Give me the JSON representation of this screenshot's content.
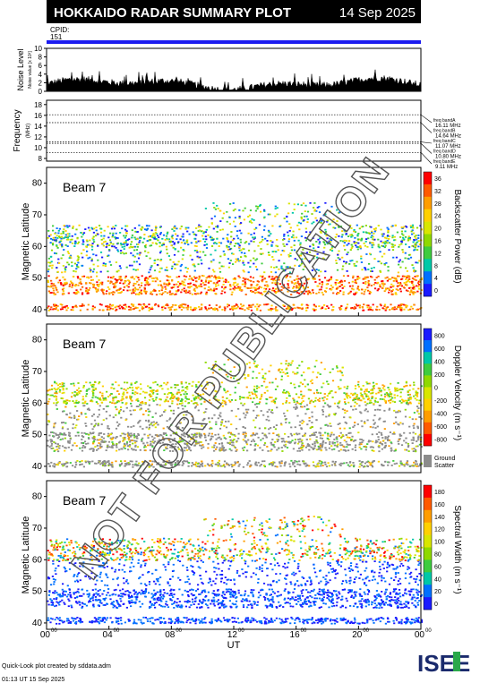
{
  "header": {
    "title": "HOKKAIDO RADAR SUMMARY PLOT",
    "date": "14 Sep 2025",
    "cpid_label": "CPID:",
    "cpid_value": "151"
  },
  "noise_panel": {
    "ylabel_main": "Noise Level",
    "ylabel_sub": "Noise value [x 10³]",
    "yticks": [
      "10",
      "8",
      "6",
      "4",
      "2",
      "0"
    ]
  },
  "freq_panel": {
    "ylabel_main": "Frequency",
    "ylabel_sub": "(MHz)",
    "yticks": [
      "18",
      "16",
      "14",
      "12",
      "10",
      "8"
    ],
    "bands": [
      {
        "name": "freq bandA",
        "value": "16.11 MHz",
        "mhz": 16.11
      },
      {
        "name": "freq bandB",
        "value": "14.64 MHz",
        "mhz": 14.64
      },
      {
        "name": "freq bandC",
        "value": "11.07 MHz",
        "mhz": 11.07
      },
      {
        "name": "freq bandD",
        "value": "10.80 MHz",
        "mhz": 10.8
      },
      {
        "name": "freq bandE",
        "value": "9.11 MHz",
        "mhz": 9.11
      }
    ]
  },
  "panels": [
    {
      "beam_label": "Beam  7",
      "ylabel": "Magnetic Latitude",
      "yticks": [
        "80",
        "70",
        "60",
        "50",
        "40"
      ],
      "colorbar_label": "Backscatter Power (dB)",
      "colorbar_ticks": [
        "36",
        "32",
        "28",
        "24",
        "20",
        "16",
        "12",
        "8",
        "4",
        "0"
      ],
      "colors": [
        "#ff0000",
        "#ff5a00",
        "#ff9d00",
        "#ffd000",
        "#d8e600",
        "#8fd900",
        "#3fcc3f",
        "#00c8a8",
        "#0070ff",
        "#1a1aff"
      ]
    },
    {
      "beam_label": "Beam  7",
      "ylabel": "Magnetic Latitude",
      "yticks": [
        "80",
        "70",
        "60",
        "50",
        "40"
      ],
      "colorbar_label": "Doppler Velocity (m s⁻¹)",
      "colorbar_ticks": [
        "800",
        "600",
        "400",
        "200",
        "0",
        "-200",
        "-400",
        "-600",
        "-800"
      ],
      "ground_label_1": "Ground",
      "ground_label_2": "Scatter",
      "colors": [
        "#1a1aff",
        "#0070ff",
        "#00c8a8",
        "#3fcc3f",
        "#8fd900",
        "#d8e600",
        "#ffd000",
        "#ff9d00",
        "#ff5a00",
        "#ff0000"
      ]
    },
    {
      "beam_label": "Beam  7",
      "ylabel": "Magnetic Latitude",
      "yticks": [
        "80",
        "70",
        "60",
        "50",
        "40"
      ],
      "colorbar_label": "Spectral Width (m s⁻¹)",
      "colorbar_ticks": [
        "180",
        "160",
        "140",
        "120",
        "100",
        "80",
        "60",
        "40",
        "20",
        "0"
      ],
      "colors": [
        "#ff0000",
        "#ff5a00",
        "#ff9d00",
        "#ffd000",
        "#d8e600",
        "#8fd900",
        "#3fcc3f",
        "#00c8a8",
        "#0070ff",
        "#1a1aff"
      ]
    }
  ],
  "xaxis": {
    "label": "UT",
    "ticks": [
      {
        "h": "00",
        "m": "00"
      },
      {
        "h": "04",
        "m": "00"
      },
      {
        "h": "08",
        "m": "00"
      },
      {
        "h": "12",
        "m": "00"
      },
      {
        "h": "16",
        "m": "00"
      },
      {
        "h": "20",
        "m": "00"
      },
      {
        "h": "00",
        "m": "00"
      }
    ]
  },
  "footer": {
    "credit": "Quick-Look plot created by sddata.adm",
    "timestamp": "01:13 UT 15 Sep 2025",
    "logo": "ISEE"
  },
  "watermark": "NOT FOR PUBLICATION",
  "chart_data": {
    "type": "heatmap",
    "x_range_hours": [
      0,
      24
    ],
    "y_range_maglat": [
      38,
      85
    ],
    "noise_range": [
      0,
      10
    ]
  }
}
